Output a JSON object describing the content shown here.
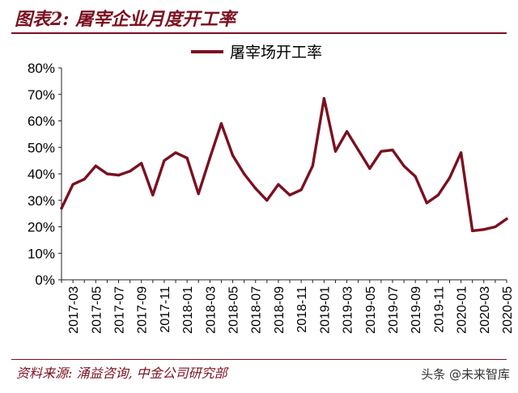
{
  "page": {
    "title": "图表2: 屠宰企业月度开工率",
    "source": "资料来源: 涌益咨询, 中金公司研究部",
    "watermark": "头条 @未来智库"
  },
  "chart_data": {
    "type": "line",
    "title": "",
    "xlabel": "",
    "ylabel": "",
    "ylim": [
      0,
      80
    ],
    "y_ticks": [
      "0%",
      "10%",
      "20%",
      "30%",
      "40%",
      "50%",
      "60%",
      "70%",
      "80%"
    ],
    "x_tick_labels": [
      "2017-03",
      "2017-05",
      "2017-07",
      "2017-09",
      "2017-11",
      "2018-01",
      "2018-03",
      "2018-05",
      "2018-07",
      "2018-09",
      "2018-11",
      "2019-01",
      "2019-03",
      "2019-05",
      "2019-07",
      "2019-09",
      "2019-11",
      "2020-01",
      "2020-03",
      "2020-05"
    ],
    "grid": false,
    "legend": "top-center",
    "color": "#7b1020",
    "series": [
      {
        "name": "屠宰场开工率",
        "x": [
          "2017-02",
          "2017-03",
          "2017-04",
          "2017-05",
          "2017-06",
          "2017-07",
          "2017-08",
          "2017-09",
          "2017-10",
          "2017-11",
          "2017-12",
          "2018-01",
          "2018-02",
          "2018-03",
          "2018-04",
          "2018-05",
          "2018-06",
          "2018-07",
          "2018-08",
          "2018-09",
          "2018-10",
          "2018-11",
          "2018-12",
          "2019-01",
          "2019-02",
          "2019-03",
          "2019-04",
          "2019-05",
          "2019-06",
          "2019-07",
          "2019-08",
          "2019-09",
          "2019-10",
          "2019-11",
          "2019-12",
          "2020-01",
          "2020-02",
          "2020-03",
          "2020-04",
          "2020-05"
        ],
        "values": [
          27,
          36,
          38,
          43,
          40,
          39.5,
          41,
          44,
          32,
          45,
          48,
          46,
          32.5,
          46,
          59,
          47,
          40,
          34.5,
          30,
          36,
          32,
          34,
          43,
          68.5,
          48.5,
          56,
          49,
          42,
          48.5,
          49,
          43,
          39,
          29,
          32,
          38.5,
          48,
          18.5,
          19,
          20,
          23
        ]
      }
    ]
  }
}
